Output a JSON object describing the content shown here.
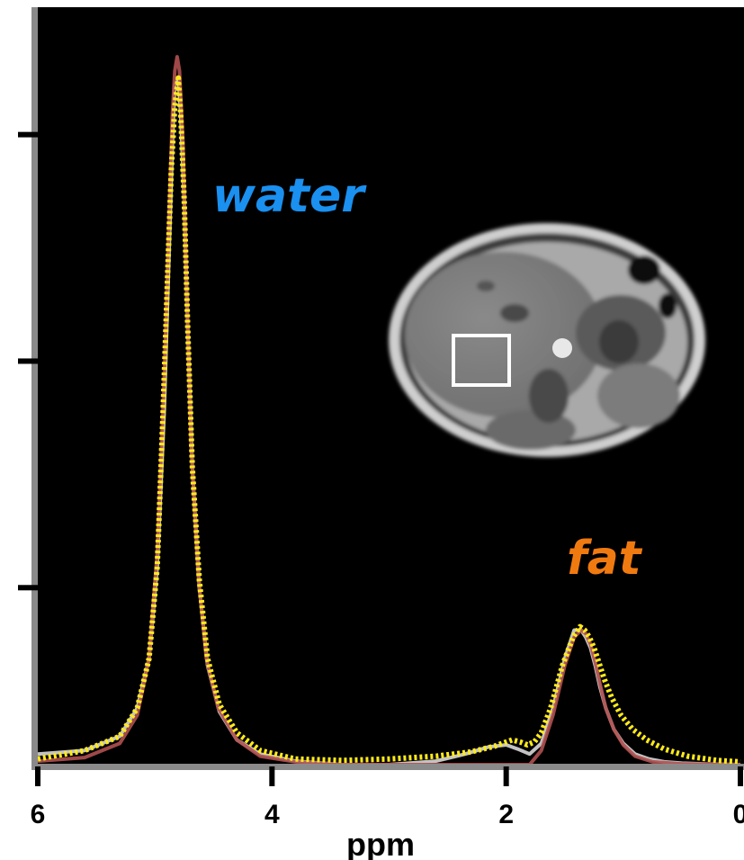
{
  "chart_data": {
    "type": "line",
    "xlabel": "ppm",
    "ylabel": "",
    "xlim": [
      6,
      0
    ],
    "x_reversed": true,
    "ylim": [
      0,
      1.07
    ],
    "xticks": [
      6,
      4,
      2,
      0
    ],
    "yticks": [
      0.25,
      0.57,
      0.89
    ],
    "grid": false,
    "background_color": "#000000",
    "annotations": [
      {
        "text": "water",
        "color": "#1a90f0"
      },
      {
        "text": "fat",
        "color": "#f07a10"
      }
    ],
    "series": [
      {
        "color": "#d8d8d8",
        "style": "solid",
        "x": [
          6.0,
          5.6,
          5.3,
          5.15,
          5.05,
          4.98,
          4.92,
          4.88,
          4.85,
          4.83,
          4.8,
          4.78,
          4.75,
          4.72,
          4.68,
          4.62,
          4.55,
          4.45,
          4.3,
          4.1,
          3.8,
          3.4,
          3.0,
          2.6,
          2.35,
          2.15,
          2.0,
          1.9,
          1.8,
          1.7,
          1.6,
          1.5,
          1.42,
          1.36,
          1.32,
          1.28,
          1.24,
          1.2,
          1.15,
          1.08,
          1.0,
          0.9,
          0.78,
          0.65,
          0.5,
          0.3,
          0.0
        ],
        "y": [
          0.015,
          0.02,
          0.04,
          0.08,
          0.15,
          0.28,
          0.5,
          0.72,
          0.88,
          0.96,
          0.97,
          0.92,
          0.8,
          0.62,
          0.42,
          0.25,
          0.14,
          0.075,
          0.035,
          0.015,
          0.005,
          0.0,
          0.0,
          0.005,
          0.015,
          0.025,
          0.028,
          0.022,
          0.015,
          0.03,
          0.08,
          0.15,
          0.19,
          0.19,
          0.18,
          0.165,
          0.14,
          0.11,
          0.08,
          0.05,
          0.03,
          0.015,
          0.008,
          0.004,
          0.002,
          0.001,
          0.0
        ]
      },
      {
        "color": "#b05050",
        "style": "solid",
        "x": [
          6.0,
          5.6,
          5.3,
          5.15,
          5.05,
          4.98,
          4.92,
          4.88,
          4.85,
          4.83,
          4.81,
          4.79,
          4.76,
          4.73,
          4.69,
          4.63,
          4.56,
          4.46,
          4.3,
          4.1,
          3.8,
          3.4,
          3.0,
          2.6,
          2.2,
          1.9,
          1.8,
          1.7,
          1.6,
          1.5,
          1.42,
          1.36,
          1.32,
          1.28,
          1.24,
          1.2,
          1.15,
          1.08,
          1.0,
          0.9,
          0.75,
          0.5,
          0.0
        ],
        "y": [
          0.005,
          0.01,
          0.03,
          0.07,
          0.15,
          0.3,
          0.55,
          0.77,
          0.92,
          0.98,
          1.0,
          0.98,
          0.88,
          0.68,
          0.45,
          0.27,
          0.15,
          0.08,
          0.035,
          0.012,
          0.004,
          0.0,
          0.0,
          0.0,
          0.0,
          0.0,
          0.0,
          0.02,
          0.07,
          0.14,
          0.18,
          0.19,
          0.185,
          0.17,
          0.145,
          0.115,
          0.08,
          0.05,
          0.028,
          0.012,
          0.004,
          0.001,
          0.0
        ]
      },
      {
        "color": "#ffeb1a",
        "style": "dotted",
        "x": [
          6.0,
          5.6,
          5.3,
          5.15,
          5.05,
          4.98,
          4.93,
          4.89,
          4.86,
          4.83,
          4.8,
          4.78,
          4.75,
          4.72,
          4.68,
          4.62,
          4.55,
          4.45,
          4.3,
          4.1,
          3.8,
          3.4,
          3.0,
          2.6,
          2.3,
          2.1,
          2.0,
          1.95,
          1.88,
          1.82,
          1.76,
          1.7,
          1.62,
          1.52,
          1.43,
          1.37,
          1.33,
          1.29,
          1.25,
          1.21,
          1.16,
          1.1,
          1.02,
          0.92,
          0.8,
          0.65,
          0.45,
          0.2,
          0.0
        ],
        "y": [
          0.008,
          0.02,
          0.04,
          0.08,
          0.15,
          0.28,
          0.5,
          0.7,
          0.84,
          0.93,
          0.97,
          0.92,
          0.8,
          0.62,
          0.42,
          0.26,
          0.15,
          0.085,
          0.045,
          0.02,
          0.008,
          0.006,
          0.008,
          0.012,
          0.018,
          0.026,
          0.032,
          0.035,
          0.032,
          0.028,
          0.032,
          0.045,
          0.08,
          0.14,
          0.18,
          0.195,
          0.19,
          0.18,
          0.165,
          0.145,
          0.12,
          0.095,
          0.07,
          0.05,
          0.035,
          0.022,
          0.012,
          0.006,
          0.004
        ]
      }
    ]
  }
}
